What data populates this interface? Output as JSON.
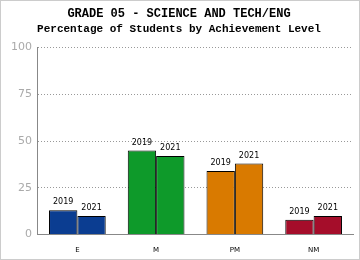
{
  "chart_data": {
    "type": "bar",
    "title": "GRADE 05 - SCIENCE AND TECH/ENG",
    "subtitle": "Percentage of Students by Achievement Level",
    "categories": [
      "E",
      "M",
      "PM",
      "NM"
    ],
    "series": [
      {
        "name": "2019",
        "colors": [
          "#0b3d91",
          "#0e9a2a",
          "#d97a00",
          "#a50d2a"
        ],
        "values": [
          13,
          45,
          34,
          8
        ]
      },
      {
        "name": "2021",
        "colors": [
          "#0b3d91",
          "#0e9a2a",
          "#d97a00",
          "#a50d2a"
        ],
        "values": [
          10,
          42,
          38,
          10
        ]
      }
    ],
    "ylim": [
      0,
      100
    ],
    "yticks": [
      0,
      25,
      50,
      75,
      100
    ],
    "grid": true,
    "legend": false
  }
}
